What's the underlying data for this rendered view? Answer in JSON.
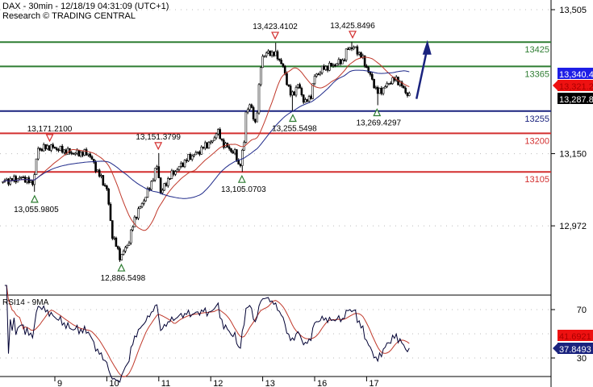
{
  "header": {
    "title": "DAX - 30min - 12/18/19 04:31:09 (UTC+1)",
    "subtitle": "Research © TRADING CENTRAL"
  },
  "chart_data": [
    {
      "type": "candlestick",
      "instrument": "DAX",
      "timeframe": "30min",
      "ylim": [
        12820,
        13530
      ],
      "y_ticks": [
        {
          "value": 13505,
          "label": "13,505"
        },
        {
          "value": 13150,
          "label": "13,150"
        },
        {
          "value": 12972,
          "label": "12,972"
        }
      ],
      "x_ticks": [
        {
          "t": 1,
          "label": "9"
        },
        {
          "t": 2,
          "label": "10"
        },
        {
          "t": 3,
          "label": "11"
        },
        {
          "t": 4,
          "label": "12"
        },
        {
          "t": 5,
          "label": "13"
        },
        {
          "t": 6,
          "label": "16"
        },
        {
          "t": 7,
          "label": "17"
        }
      ],
      "grid": "dotted horizontal",
      "price_path": [
        [
          0.0,
          13081
        ],
        [
          0.4,
          13091
        ],
        [
          0.55,
          13075
        ],
        [
          0.62,
          13100
        ],
        [
          0.66,
          13161
        ],
        [
          0.9,
          13167
        ],
        [
          1.35,
          13151
        ],
        [
          1.65,
          13151
        ],
        [
          1.8,
          13111
        ],
        [
          2.0,
          13062
        ],
        [
          2.1,
          12952
        ],
        [
          2.26,
          12893
        ],
        [
          2.42,
          12932
        ],
        [
          2.54,
          12992
        ],
        [
          2.66,
          13022
        ],
        [
          2.81,
          13062
        ],
        [
          2.97,
          13121
        ],
        [
          3.04,
          13052
        ],
        [
          3.2,
          13092
        ],
        [
          3.35,
          13111
        ],
        [
          3.58,
          13141
        ],
        [
          3.74,
          13151
        ],
        [
          3.9,
          13171
        ],
        [
          4.05,
          13181
        ],
        [
          4.12,
          13211
        ],
        [
          4.2,
          13181
        ],
        [
          4.36,
          13161
        ],
        [
          4.47,
          13151
        ],
        [
          4.55,
          13115
        ],
        [
          4.64,
          13171
        ],
        [
          4.67,
          13251
        ],
        [
          4.75,
          13271
        ],
        [
          4.87,
          13221
        ],
        [
          4.98,
          13390
        ],
        [
          5.14,
          13400
        ],
        [
          5.29,
          13390
        ],
        [
          5.4,
          13360
        ],
        [
          5.46,
          13330
        ],
        [
          5.55,
          13290
        ],
        [
          5.68,
          13320
        ],
        [
          5.81,
          13275
        ],
        [
          5.92,
          13290
        ],
        [
          6.0,
          13340
        ],
        [
          6.16,
          13360
        ],
        [
          6.39,
          13370
        ],
        [
          6.55,
          13380
        ],
        [
          6.65,
          13413
        ],
        [
          6.78,
          13409
        ],
        [
          6.9,
          13390
        ],
        [
          7.01,
          13360
        ],
        [
          7.09,
          13336
        ],
        [
          7.21,
          13300
        ],
        [
          7.32,
          13310
        ],
        [
          7.47,
          13330
        ],
        [
          7.58,
          13334
        ],
        [
          7.71,
          13310
        ],
        [
          7.83,
          13290
        ]
      ],
      "moving_averages": [
        {
          "color": "#c0392b",
          "last": "13,321.2"
        },
        {
          "color": "#1f2a8a",
          "last": "13,340.4"
        }
      ],
      "last_price": "13,287.8",
      "levels": [
        {
          "value": 13425,
          "label": "13425",
          "color": "#2e7d32"
        },
        {
          "value": 13365,
          "label": "13365",
          "color": "#2e7d32"
        },
        {
          "value": 13255,
          "label": "13255",
          "color": "#1a237e"
        },
        {
          "value": 13200,
          "label": "13200",
          "color": "#d32f2f"
        },
        {
          "value": 13105,
          "label": "13105",
          "color": "#d32f2f"
        }
      ],
      "annotations": [
        {
          "t": 0.61,
          "value": 13055.9805,
          "label": "13,055.9805",
          "kind": "low"
        },
        {
          "t": 0.9,
          "value": 13171.21,
          "label": "13,171.2100",
          "kind": "high"
        },
        {
          "t": 2.28,
          "value": 12886.5498,
          "label": "12,886.5498",
          "kind": "low"
        },
        {
          "t": 2.99,
          "value": 13151.3799,
          "label": "13,151.3799",
          "kind": "high"
        },
        {
          "t": 4.6,
          "value": 13105.0703,
          "label": "13,105.0703",
          "kind": "low"
        },
        {
          "t": 5.24,
          "value": 13423.4102,
          "label": "13,423.4102",
          "kind": "high"
        },
        {
          "t": 5.58,
          "value": 13255.5498,
          "label": "13,255.5498",
          "kind": "low"
        },
        {
          "t": 6.73,
          "value": 13425.8496,
          "label": "13,425.8496",
          "kind": "high"
        },
        {
          "t": 7.2,
          "value": 13269.4297,
          "label": "13,269.4297",
          "kind": "low"
        }
      ],
      "forecast_arrow": {
        "from": [
          7.96,
          13285
        ],
        "to": [
          8.17,
          13430
        ],
        "color": "#1a237e"
      }
    },
    {
      "type": "line",
      "title": "RSI14 - 9MA",
      "ylim": [
        10,
        90
      ],
      "y_ticks": [
        {
          "value": 70,
          "label": "70"
        },
        {
          "value": 30,
          "label": "30"
        }
      ],
      "series": [
        {
          "name": "RSI14",
          "color": "#000033",
          "last": "37.8493"
        },
        {
          "name": "9MA",
          "color": "#c0392b",
          "last": "41.6921"
        }
      ]
    }
  ]
}
